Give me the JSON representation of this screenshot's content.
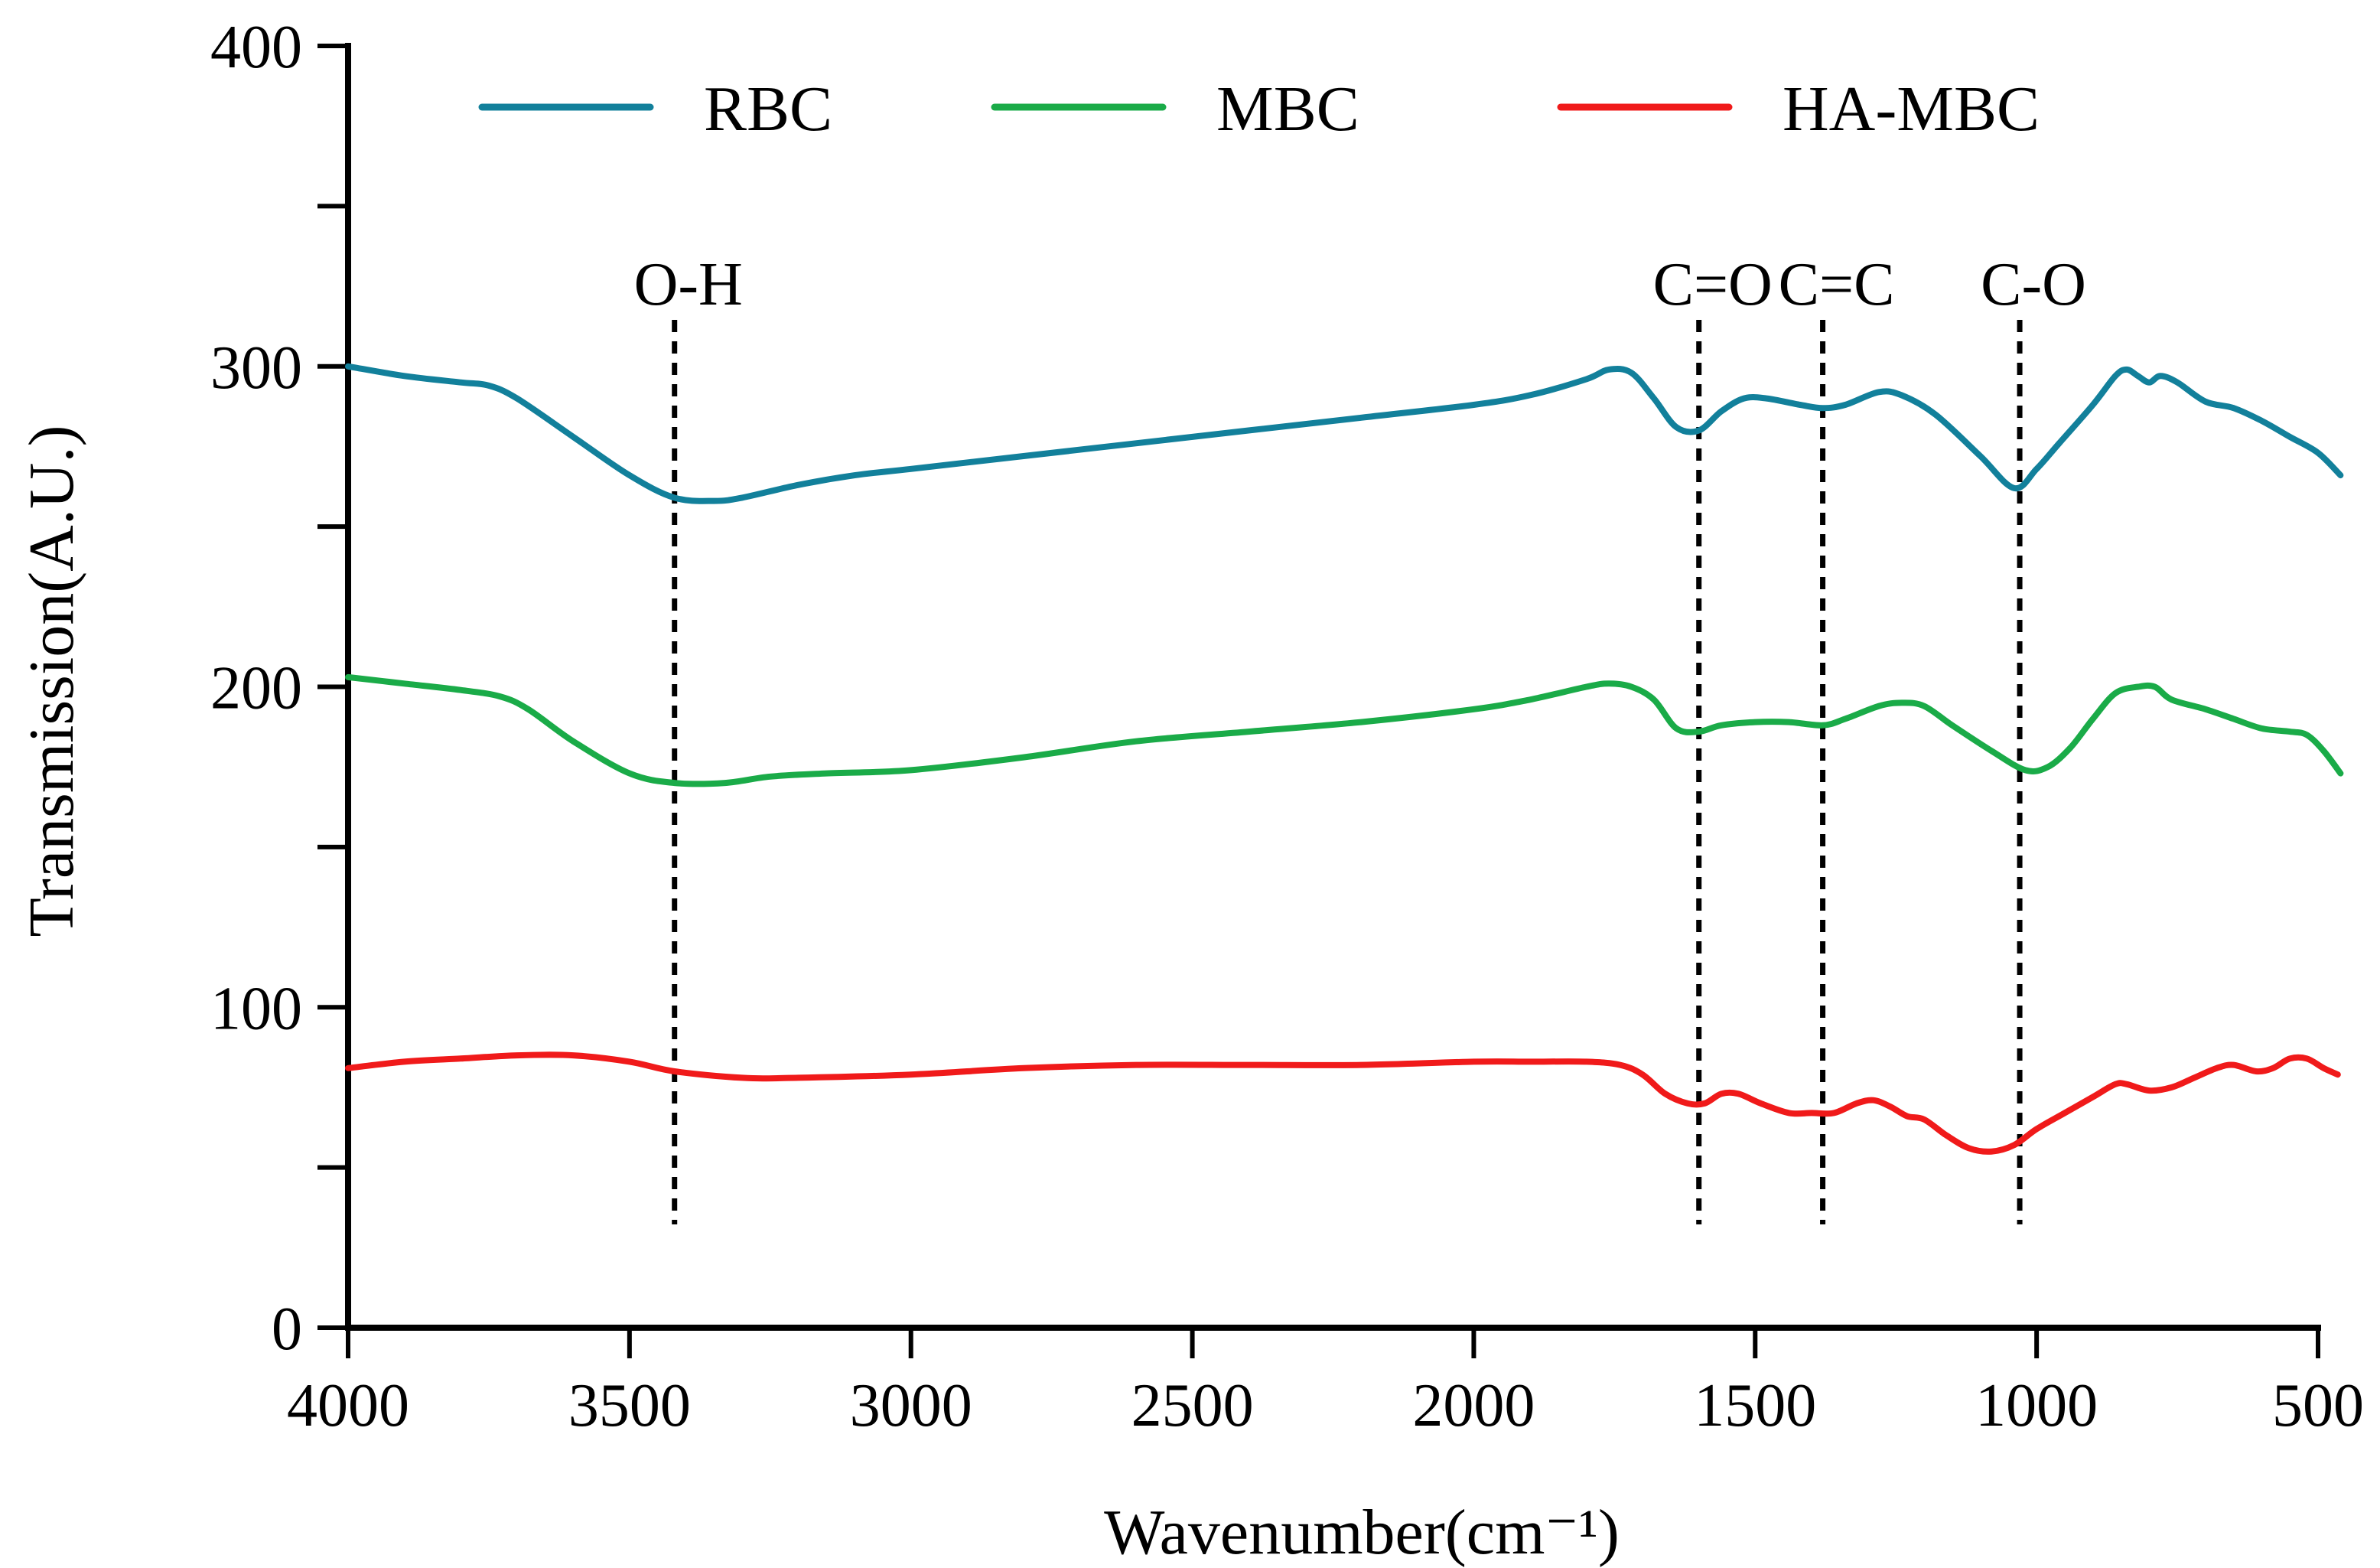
{
  "chart_data": {
    "type": "line",
    "title": "",
    "xlabel": "Wavenumber(cm⁻¹)",
    "ylabel": "Transmission(A.U.)",
    "xlim": [
      4000,
      450
    ],
    "ylim": [
      0,
      400
    ],
    "x_ticks": [
      4000,
      3500,
      3000,
      2500,
      2000,
      1500,
      1000,
      500
    ],
    "x_tick_labels": [
      "4000",
      "3500",
      "3000",
      "2500",
      "2000",
      "1500",
      "1000",
      "500"
    ],
    "y_major_ticks": [
      0,
      100,
      200,
      300,
      400
    ],
    "y_tick_labels": [
      "0",
      "100",
      "200",
      "300",
      "400"
    ],
    "y_minor_ticks": [
      50,
      150,
      250,
      350
    ],
    "legend_position": "top",
    "series": [
      {
        "name": "RBC",
        "color": "#12809b",
        "points": [
          [
            4000,
            300
          ],
          [
            3900,
            297
          ],
          [
            3800,
            295
          ],
          [
            3750,
            294
          ],
          [
            3700,
            290
          ],
          [
            3600,
            278
          ],
          [
            3500,
            266
          ],
          [
            3420,
            259
          ],
          [
            3350,
            258
          ],
          [
            3300,
            259
          ],
          [
            3200,
            263
          ],
          [
            3100,
            266
          ],
          [
            3000,
            268
          ],
          [
            2800,
            272
          ],
          [
            2500,
            278
          ],
          [
            2200,
            284
          ],
          [
            2000,
            288
          ],
          [
            1900,
            291
          ],
          [
            1800,
            296
          ],
          [
            1760,
            299
          ],
          [
            1720,
            298
          ],
          [
            1680,
            290
          ],
          [
            1640,
            281
          ],
          [
            1600,
            280
          ],
          [
            1560,
            286
          ],
          [
            1520,
            290
          ],
          [
            1480,
            290
          ],
          [
            1420,
            288
          ],
          [
            1380,
            287
          ],
          [
            1340,
            288
          ],
          [
            1280,
            292
          ],
          [
            1240,
            291
          ],
          [
            1180,
            285
          ],
          [
            1100,
            272
          ],
          [
            1040,
            262
          ],
          [
            1000,
            268
          ],
          [
            960,
            276
          ],
          [
            900,
            288
          ],
          [
            860,
            297
          ],
          [
            840,
            299
          ],
          [
            820,
            297
          ],
          [
            800,
            295
          ],
          [
            780,
            297
          ],
          [
            750,
            295
          ],
          [
            700,
            289
          ],
          [
            650,
            287
          ],
          [
            600,
            283
          ],
          [
            550,
            278
          ],
          [
            500,
            273
          ],
          [
            460,
            266
          ]
        ]
      },
      {
        "name": "MBC",
        "color": "#1aab48",
        "points": [
          [
            4000,
            203
          ],
          [
            3900,
            201
          ],
          [
            3800,
            199
          ],
          [
            3730,
            197
          ],
          [
            3680,
            193
          ],
          [
            3600,
            183
          ],
          [
            3500,
            173
          ],
          [
            3420,
            170
          ],
          [
            3330,
            170
          ],
          [
            3250,
            172
          ],
          [
            3150,
            173
          ],
          [
            3000,
            174
          ],
          [
            2800,
            178
          ],
          [
            2600,
            183
          ],
          [
            2400,
            186
          ],
          [
            2200,
            189
          ],
          [
            2000,
            193
          ],
          [
            1900,
            196
          ],
          [
            1800,
            200
          ],
          [
            1760,
            201
          ],
          [
            1720,
            200
          ],
          [
            1680,
            196
          ],
          [
            1640,
            187
          ],
          [
            1600,
            186
          ],
          [
            1560,
            188
          ],
          [
            1500,
            189
          ],
          [
            1440,
            189
          ],
          [
            1380,
            188
          ],
          [
            1340,
            190
          ],
          [
            1280,
            194
          ],
          [
            1240,
            195
          ],
          [
            1200,
            194
          ],
          [
            1150,
            188
          ],
          [
            1080,
            180
          ],
          [
            1020,
            174
          ],
          [
            980,
            175
          ],
          [
            940,
            181
          ],
          [
            900,
            190
          ],
          [
            860,
            198
          ],
          [
            820,
            200
          ],
          [
            790,
            200
          ],
          [
            760,
            196
          ],
          [
            700,
            193
          ],
          [
            650,
            190
          ],
          [
            600,
            187
          ],
          [
            550,
            186
          ],
          [
            520,
            185
          ],
          [
            490,
            180
          ],
          [
            460,
            173
          ]
        ]
      },
      {
        "name": "HA-MBC",
        "color": "#f01a1a",
        "points": [
          [
            4000,
            81
          ],
          [
            3900,
            83
          ],
          [
            3800,
            84
          ],
          [
            3700,
            85
          ],
          [
            3600,
            85
          ],
          [
            3500,
            83
          ],
          [
            3420,
            80
          ],
          [
            3300,
            78
          ],
          [
            3200,
            78
          ],
          [
            3000,
            79
          ],
          [
            2800,
            81
          ],
          [
            2600,
            82
          ],
          [
            2400,
            82
          ],
          [
            2200,
            82
          ],
          [
            2000,
            83
          ],
          [
            1900,
            83
          ],
          [
            1800,
            83
          ],
          [
            1740,
            82
          ],
          [
            1700,
            79
          ],
          [
            1660,
            73
          ],
          [
            1620,
            70
          ],
          [
            1590,
            70
          ],
          [
            1560,
            73
          ],
          [
            1530,
            73
          ],
          [
            1490,
            70
          ],
          [
            1440,
            67
          ],
          [
            1400,
            67
          ],
          [
            1360,
            67
          ],
          [
            1320,
            70
          ],
          [
            1290,
            71
          ],
          [
            1260,
            69
          ],
          [
            1230,
            66
          ],
          [
            1200,
            65
          ],
          [
            1160,
            60
          ],
          [
            1120,
            56
          ],
          [
            1080,
            55
          ],
          [
            1040,
            57
          ],
          [
            1000,
            62
          ],
          [
            950,
            67
          ],
          [
            900,
            72
          ],
          [
            860,
            76
          ],
          [
            840,
            76
          ],
          [
            800,
            74
          ],
          [
            760,
            75
          ],
          [
            720,
            78
          ],
          [
            680,
            81
          ],
          [
            650,
            82
          ],
          [
            610,
            80
          ],
          [
            580,
            81
          ],
          [
            550,
            84
          ],
          [
            520,
            84
          ],
          [
            490,
            81
          ],
          [
            465,
            79
          ]
        ]
      }
    ],
    "annotations": [
      {
        "label": "O-H",
        "x": 3420
      },
      {
        "label": "C=O",
        "x": 1600
      },
      {
        "label": "C=C",
        "x": 1380
      },
      {
        "label": "C-O",
        "x": 1030
      }
    ]
  }
}
